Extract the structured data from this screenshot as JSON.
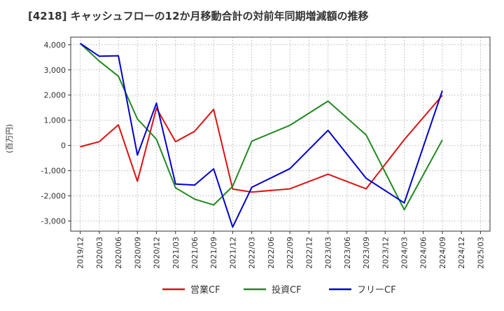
{
  "chart_data": {
    "type": "line",
    "title": "[4218]  キャッシュフローの12か月移動合計の対前年同期増減額の推移",
    "ylabel": "(百万円)",
    "xlabel": "",
    "ylim": [
      -3400,
      4300
    ],
    "yticks": [
      4000,
      3000,
      2000,
      1000,
      0,
      -1000,
      -2000,
      -3000
    ],
    "ytick_labels": [
      "4,000",
      "3,000",
      "2,000",
      "1,000",
      "0",
      "-1,000",
      "-2,000",
      "-3,000"
    ],
    "categories": [
      "2019/12",
      "2020/03",
      "2020/06",
      "2020/09",
      "2020/12",
      "2021/03",
      "2021/06",
      "2021/09",
      "2021/12",
      "2022/03",
      "2022/06",
      "2022/09",
      "2022/12",
      "2023/03",
      "2023/06",
      "2023/09",
      "2023/12",
      "2024/03",
      "2024/06",
      "2024/09",
      "2024/12",
      "2025/03"
    ],
    "grid": true,
    "legend_position": "bottom",
    "series": [
      {
        "name": "営業CF",
        "color": "#dd1111",
        "points": [
          [
            0,
            -50
          ],
          [
            1,
            150
          ],
          [
            2,
            820
          ],
          [
            3,
            -1420
          ],
          [
            4,
            1480
          ],
          [
            5,
            150
          ],
          [
            6,
            560
          ],
          [
            7,
            1430
          ],
          [
            8,
            -1730
          ],
          [
            9,
            -1850
          ],
          [
            11,
            -1720
          ],
          [
            13,
            -1140
          ],
          [
            15,
            -1720
          ],
          [
            17,
            230
          ],
          [
            19,
            1990
          ]
        ]
      },
      {
        "name": "投資CF",
        "color": "#228822",
        "points": [
          [
            0,
            4050
          ],
          [
            1,
            3350
          ],
          [
            2,
            2750
          ],
          [
            3,
            1050
          ],
          [
            4,
            250
          ],
          [
            5,
            -1680
          ],
          [
            6,
            -2130
          ],
          [
            7,
            -2360
          ],
          [
            8,
            -1620
          ],
          [
            9,
            170
          ],
          [
            11,
            800
          ],
          [
            13,
            1760
          ],
          [
            15,
            420
          ],
          [
            17,
            -2550
          ],
          [
            19,
            220
          ]
        ]
      },
      {
        "name": "フリーCF",
        "color": "#0000cc",
        "points": [
          [
            0,
            4050
          ],
          [
            1,
            3540
          ],
          [
            2,
            3560
          ],
          [
            3,
            -380
          ],
          [
            4,
            1680
          ],
          [
            5,
            -1530
          ],
          [
            6,
            -1570
          ],
          [
            7,
            -930
          ],
          [
            8,
            -3240
          ],
          [
            9,
            -1660
          ],
          [
            11,
            -920
          ],
          [
            13,
            600
          ],
          [
            15,
            -1300
          ],
          [
            17,
            -2280
          ],
          [
            19,
            2180
          ]
        ]
      }
    ]
  }
}
